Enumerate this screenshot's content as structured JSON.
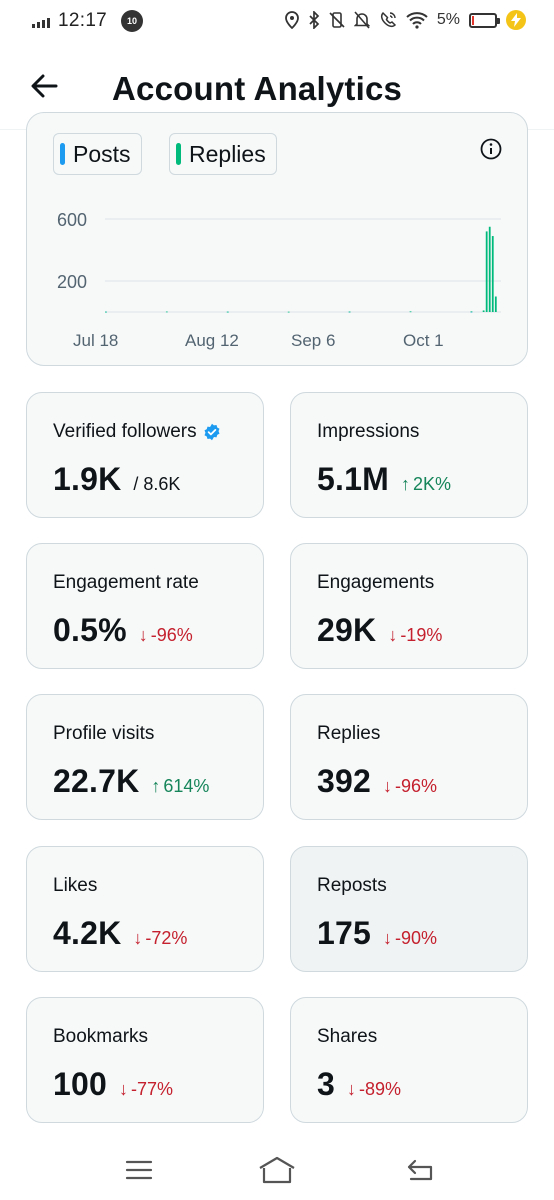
{
  "status_bar": {
    "time": "12:17",
    "notification_count": "10",
    "battery_percent": "5%",
    "battery_level": 0.05
  },
  "header": {
    "title": "Account Analytics",
    "back_icon": "arrow-left-icon"
  },
  "chart": {
    "legend": [
      {
        "label": "Posts",
        "color": "#1d9bf0"
      },
      {
        "label": "Replies",
        "color": "#00ba7c"
      }
    ],
    "info_icon": "info-circle-icon",
    "chart_data": {
      "type": "bar",
      "x_tick_labels": [
        "Jul 18",
        "Aug 12",
        "Sep 6",
        "Oct 1"
      ],
      "y_tick_labels": [
        "600",
        "200"
      ],
      "y_ticks": [
        600,
        200
      ],
      "ylim": [
        0,
        800
      ],
      "grid": true,
      "series": [
        {
          "name": "Posts",
          "color": "#1d9bf0",
          "days": [
            0,
            40,
            80,
            120
          ],
          "values": [
            2,
            2,
            2,
            2
          ]
        },
        {
          "name": "Replies",
          "color": "#00ba7c",
          "days": [
            0,
            20,
            40,
            60,
            80,
            100,
            120,
            124,
            125,
            126,
            127,
            128
          ],
          "values": [
            2,
            3,
            2,
            2,
            3,
            4,
            4,
            10,
            520,
            550,
            490,
            100
          ]
        }
      ],
      "x_day_span": 130
    }
  },
  "metrics": [
    {
      "label": "Verified followers",
      "value": "1.9K",
      "sub": "/ 8.6K",
      "verified": true
    },
    {
      "label": "Impressions",
      "value": "5.1M",
      "change": "2K%",
      "direction": "up"
    },
    {
      "label": "Engagement rate",
      "value": "0.5%",
      "change": "-96%",
      "direction": "down"
    },
    {
      "label": "Engagements",
      "value": "29K",
      "change": "-19%",
      "direction": "down"
    },
    {
      "label": "Profile visits",
      "value": "22.7K",
      "change": "614%",
      "direction": "up"
    },
    {
      "label": "Replies",
      "value": "392",
      "change": "-96%",
      "direction": "down"
    },
    {
      "label": "Likes",
      "value": "4.2K",
      "change": "-72%",
      "direction": "down"
    },
    {
      "label": "Reposts",
      "value": "175",
      "change": "-90%",
      "direction": "down"
    },
    {
      "label": "Bookmarks",
      "value": "100",
      "change": "-77%",
      "direction": "down"
    },
    {
      "label": "Shares",
      "value": "3",
      "change": "-89%",
      "direction": "down"
    }
  ],
  "nav": {
    "menu_icon": "menu-icon",
    "home_icon": "home-icon",
    "back_icon": "back-icon"
  },
  "colors": {
    "up": "#16855a",
    "down": "#c4202d",
    "verified": "#1d9bf0"
  }
}
